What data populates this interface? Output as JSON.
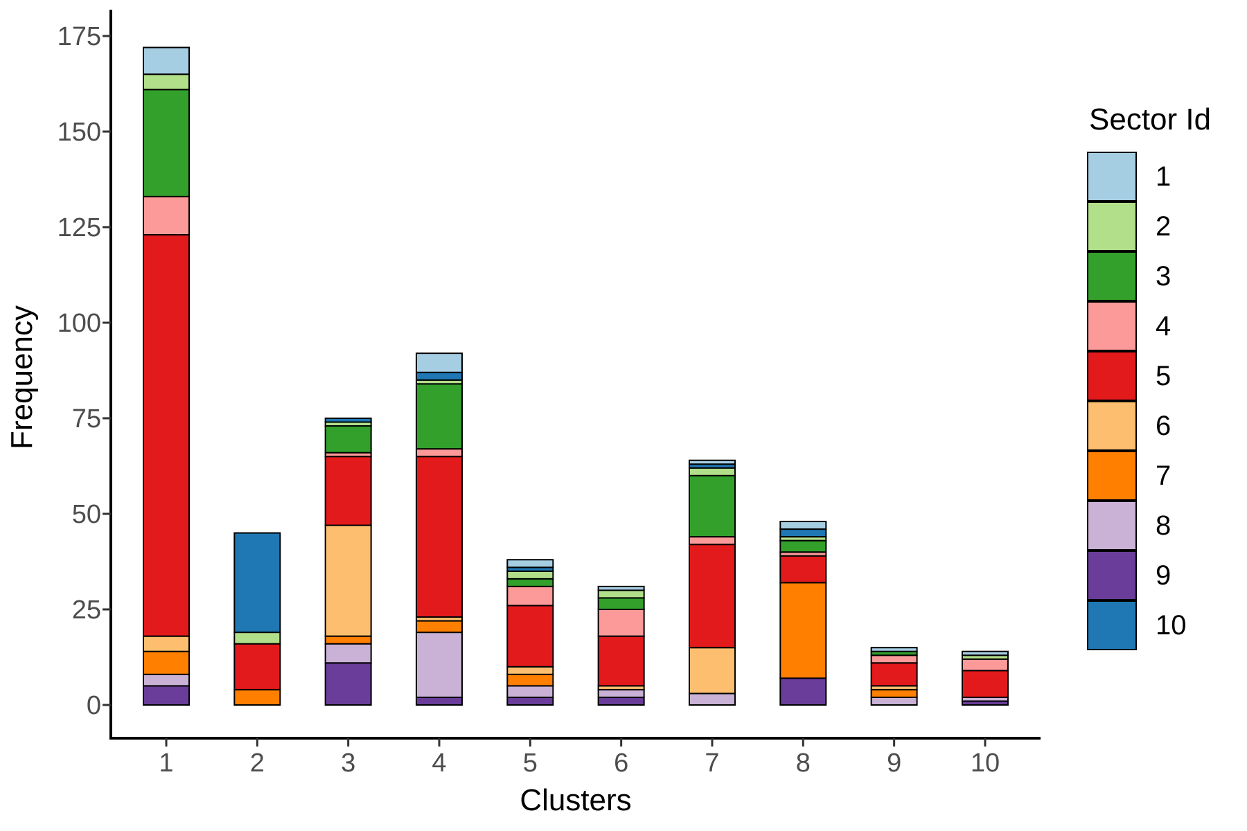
{
  "legend": {
    "title": "Sector Id"
  },
  "chart_data": {
    "type": "bar",
    "stacked": true,
    "title": "",
    "xlabel": "Clusters",
    "ylabel": "Frequency",
    "categories": [
      "1",
      "2",
      "3",
      "4",
      "5",
      "6",
      "7",
      "8",
      "9",
      "10"
    ],
    "y_ticks": [
      0,
      25,
      50,
      75,
      100,
      125,
      150,
      175
    ],
    "ylim": [
      0,
      183
    ],
    "grid": false,
    "legend_position": "right",
    "bar_totals": [
      172,
      45,
      75,
      92,
      38,
      31,
      64,
      48,
      15,
      14
    ],
    "stack_order": [
      "9",
      "8",
      "7",
      "6",
      "5",
      "4",
      "3",
      "2",
      "10",
      "1"
    ],
    "series": [
      {
        "name": "1",
        "color": "#A6CEE3",
        "values": [
          7,
          0,
          0,
          5,
          2,
          1,
          1,
          2,
          1,
          1
        ]
      },
      {
        "name": "2",
        "color": "#B2DF8A",
        "values": [
          4,
          3,
          1,
          1,
          2,
          2,
          2,
          1,
          0,
          1
        ]
      },
      {
        "name": "3",
        "color": "#33A02C",
        "values": [
          28,
          0,
          7,
          17,
          2,
          3,
          16,
          3,
          1,
          0
        ]
      },
      {
        "name": "4",
        "color": "#FB9A99",
        "values": [
          10,
          0,
          1,
          2,
          5,
          7,
          2,
          1,
          2,
          3
        ]
      },
      {
        "name": "5",
        "color": "#E31A1C",
        "values": [
          105,
          12,
          18,
          42,
          16,
          13,
          27,
          7,
          6,
          7
        ]
      },
      {
        "name": "6",
        "color": "#FDBF6F",
        "values": [
          4,
          0,
          29,
          1,
          2,
          1,
          12,
          0,
          1,
          0
        ]
      },
      {
        "name": "7",
        "color": "#FF7F00",
        "values": [
          6,
          4,
          2,
          3,
          3,
          0,
          0,
          25,
          2,
          0
        ]
      },
      {
        "name": "8",
        "color": "#CAB2D6",
        "values": [
          3,
          0,
          5,
          17,
          3,
          2,
          3,
          0,
          2,
          1
        ]
      },
      {
        "name": "9",
        "color": "#6A3D9A",
        "values": [
          5,
          0,
          11,
          2,
          2,
          2,
          0,
          7,
          0,
          1
        ]
      },
      {
        "name": "10",
        "color": "#1F78B4",
        "values": [
          0,
          26,
          1,
          2,
          1,
          0,
          1,
          2,
          0,
          0
        ]
      }
    ],
    "axis_colors": {
      "line": "#000000",
      "tick": "#333333",
      "tick_label": "#4d4d4d",
      "title": "#000000"
    }
  }
}
